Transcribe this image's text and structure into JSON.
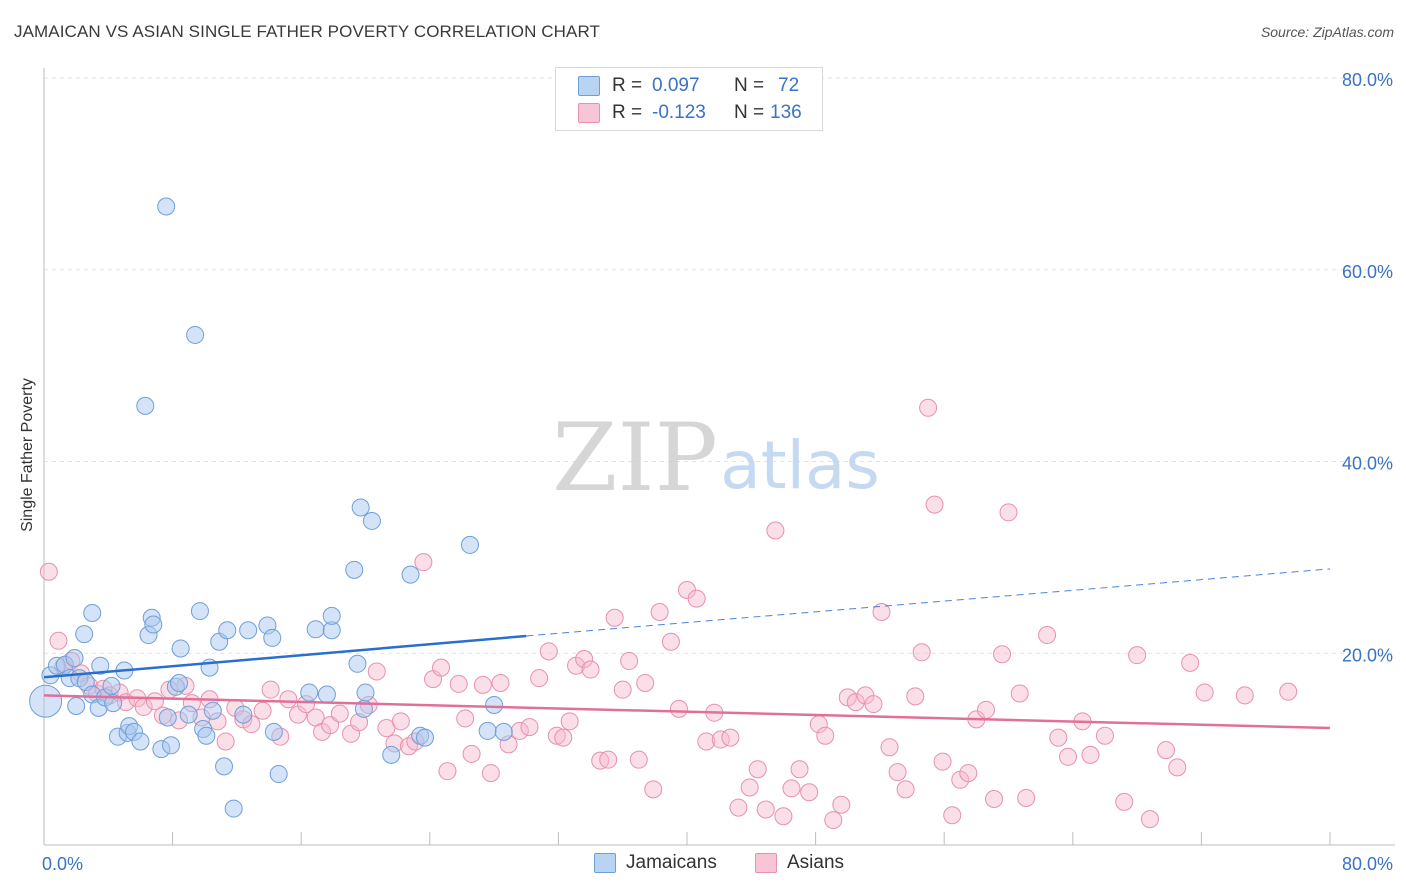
{
  "header": {
    "title": "JAMAICAN VS ASIAN SINGLE FATHER POVERTY CORRELATION CHART",
    "source": "Source: ZipAtlas.com"
  },
  "watermark": {
    "zip": "ZIP",
    "atlas": "atlas"
  },
  "colors": {
    "blue_fill": "#a9c8f0",
    "blue_stroke": "#6f9fd8",
    "blue_line": "#2a6fcf",
    "pink_fill": "#f6b8cb",
    "pink_stroke": "#e890ad",
    "pink_line": "#e0709a",
    "axis_text": "#3a72c4"
  },
  "legend_top": [
    {
      "r_label": "R =",
      "r_value": "0.097",
      "n_label": "N =",
      "n_value": "72"
    },
    {
      "r_label": "R =",
      "r_value": "-0.123",
      "n_label": "N =",
      "n_value": "136"
    }
  ],
  "legend_bottom": [
    "Jamaicans",
    "Asians"
  ],
  "chart_data": {
    "type": "scatter",
    "title": "JAMAICAN VS ASIAN SINGLE FATHER POVERTY CORRELATION CHART",
    "xlabel": "",
    "ylabel": "Single Father Poverty",
    "xlim": [
      0,
      80
    ],
    "ylim": [
      0,
      80
    ],
    "x_tick_labels": [
      "0.0%",
      "80.0%"
    ],
    "y_tick_values": [
      20,
      40,
      60,
      80
    ],
    "y_tick_labels": [
      "20.0%",
      "40.0%",
      "60.0%",
      "80.0%"
    ],
    "grid": true,
    "legend_position": "top-center",
    "series": [
      {
        "name": "Jamaicans",
        "r": 0.097,
        "n": 72,
        "trend": {
          "x0": 0,
          "y0": 17.5,
          "x1": 30,
          "y1": 21.8,
          "dashed_to_x": 80,
          "dashed_to_y": 28.8
        },
        "points": [
          [
            0.1,
            15
          ],
          [
            0.4,
            17.7
          ],
          [
            0.8,
            18.7
          ],
          [
            1.3,
            18.8
          ],
          [
            1.6,
            17.4
          ],
          [
            1.9,
            19.5
          ],
          [
            2.0,
            14.5
          ],
          [
            2.2,
            17.4
          ],
          [
            2.5,
            22
          ],
          [
            2.6,
            17
          ],
          [
            3.0,
            15.7
          ],
          [
            3.0,
            24.2
          ],
          [
            3.4,
            14.3
          ],
          [
            3.5,
            18.7
          ],
          [
            3.8,
            15.4
          ],
          [
            4.2,
            16.6
          ],
          [
            4.3,
            14.8
          ],
          [
            4.6,
            11.3
          ],
          [
            5.0,
            18.2
          ],
          [
            5.2,
            11.7
          ],
          [
            5.3,
            12.4
          ],
          [
            5.6,
            11.8
          ],
          [
            6.0,
            10.8
          ],
          [
            6.3,
            45.8
          ],
          [
            6.5,
            21.9
          ],
          [
            6.7,
            23.7
          ],
          [
            6.8,
            23.0
          ],
          [
            7.3,
            10.0
          ],
          [
            7.6,
            66.6
          ],
          [
            7.7,
            13.3
          ],
          [
            7.9,
            10.4
          ],
          [
            8.2,
            16.5
          ],
          [
            8.4,
            16.9
          ],
          [
            8.5,
            20.5
          ],
          [
            9.0,
            13.6
          ],
          [
            9.4,
            53.2
          ],
          [
            9.7,
            24.4
          ],
          [
            9.9,
            12.1
          ],
          [
            10.1,
            11.4
          ],
          [
            10.3,
            18.5
          ],
          [
            10.5,
            14.0
          ],
          [
            10.9,
            21.2
          ],
          [
            11.2,
            8.2
          ],
          [
            11.4,
            22.4
          ],
          [
            11.8,
            3.8
          ],
          [
            12.4,
            13.6
          ],
          [
            12.7,
            22.4
          ],
          [
            13.9,
            22.9
          ],
          [
            14.2,
            21.6
          ],
          [
            14.3,
            11.8
          ],
          [
            14.6,
            7.4
          ],
          [
            16.5,
            15.9
          ],
          [
            16.9,
            22.5
          ],
          [
            17.6,
            15.7
          ],
          [
            17.9,
            22.4
          ],
          [
            17.9,
            23.9
          ],
          [
            19.3,
            28.7
          ],
          [
            19.5,
            18.9
          ],
          [
            19.7,
            35.2
          ],
          [
            19.9,
            14.2
          ],
          [
            20.0,
            15.9
          ],
          [
            20.4,
            33.8
          ],
          [
            21.6,
            9.4
          ],
          [
            22.8,
            28.2
          ],
          [
            23.4,
            11.4
          ],
          [
            23.7,
            11.2
          ],
          [
            26.5,
            31.3
          ],
          [
            27.6,
            11.9
          ],
          [
            28.0,
            14.6
          ],
          [
            28.6,
            11.8
          ]
        ]
      },
      {
        "name": "Asians",
        "r": -0.123,
        "n": 136,
        "trend": {
          "x0": 0,
          "y0": 15.6,
          "x1": 80,
          "y1": 12.2
        },
        "points": [
          [
            0.3,
            28.5
          ],
          [
            0.9,
            21.3
          ],
          [
            1.2,
            18.6
          ],
          [
            1.7,
            19.2
          ],
          [
            2.3,
            17.9
          ],
          [
            2.8,
            16.6
          ],
          [
            3.3,
            15.8
          ],
          [
            3.7,
            16.3
          ],
          [
            4.1,
            15.6
          ],
          [
            4.7,
            15.9
          ],
          [
            5.1,
            14.9
          ],
          [
            5.8,
            15.3
          ],
          [
            6.2,
            14.4
          ],
          [
            6.9,
            15.0
          ],
          [
            7.4,
            13.5
          ],
          [
            7.8,
            16.2
          ],
          [
            8.4,
            13.0
          ],
          [
            8.8,
            16.6
          ],
          [
            9.2,
            14.8
          ],
          [
            9.8,
            13.3
          ],
          [
            10.3,
            15.2
          ],
          [
            10.8,
            12.9
          ],
          [
            11.3,
            10.8
          ],
          [
            11.9,
            14.3
          ],
          [
            12.4,
            13.1
          ],
          [
            12.9,
            12.6
          ],
          [
            13.6,
            14.0
          ],
          [
            14.1,
            16.2
          ],
          [
            14.7,
            11.3
          ],
          [
            15.2,
            15.2
          ],
          [
            15.8,
            13.6
          ],
          [
            16.3,
            14.7
          ],
          [
            16.9,
            13.3
          ],
          [
            17.3,
            11.8
          ],
          [
            17.8,
            12.5
          ],
          [
            18.4,
            13.7
          ],
          [
            19.1,
            11.6
          ],
          [
            19.6,
            12.8
          ],
          [
            20.2,
            14.6
          ],
          [
            20.7,
            18.1
          ],
          [
            21.3,
            12.2
          ],
          [
            21.8,
            10.6
          ],
          [
            22.2,
            12.9
          ],
          [
            22.7,
            10.3
          ],
          [
            23.1,
            10.8
          ],
          [
            23.6,
            29.5
          ],
          [
            24.2,
            17.3
          ],
          [
            24.7,
            18.5
          ],
          [
            25.1,
            7.7
          ],
          [
            25.8,
            16.8
          ],
          [
            26.2,
            13.2
          ],
          [
            26.6,
            9.5
          ],
          [
            27.3,
            16.7
          ],
          [
            27.8,
            7.5
          ],
          [
            28.4,
            16.9
          ],
          [
            28.9,
            10.5
          ],
          [
            29.6,
            11.9
          ],
          [
            30.2,
            12.3
          ],
          [
            30.8,
            17.4
          ],
          [
            31.4,
            20.2
          ],
          [
            31.9,
            11.4
          ],
          [
            32.3,
            11.2
          ],
          [
            32.7,
            12.9
          ],
          [
            33.1,
            18.7
          ],
          [
            33.6,
            19.4
          ],
          [
            34.0,
            18.3
          ],
          [
            34.6,
            8.8
          ],
          [
            35.1,
            8.9
          ],
          [
            35.5,
            23.7
          ],
          [
            36.0,
            16.2
          ],
          [
            36.4,
            19.2
          ],
          [
            37.0,
            8.9
          ],
          [
            37.4,
            16.9
          ],
          [
            37.9,
            5.8
          ],
          [
            38.3,
            24.3
          ],
          [
            39.0,
            21.2
          ],
          [
            39.5,
            14.2
          ],
          [
            40.0,
            26.6
          ],
          [
            40.6,
            25.7
          ],
          [
            41.2,
            10.8
          ],
          [
            41.7,
            13.8
          ],
          [
            42.1,
            11.0
          ],
          [
            42.7,
            11.2
          ],
          [
            43.2,
            3.9
          ],
          [
            43.9,
            6.0
          ],
          [
            44.4,
            7.9
          ],
          [
            44.9,
            3.7
          ],
          [
            45.5,
            32.8
          ],
          [
            46.0,
            3.0
          ],
          [
            46.5,
            5.9
          ],
          [
            47.0,
            7.9
          ],
          [
            47.6,
            5.5
          ],
          [
            48.2,
            12.6
          ],
          [
            48.6,
            11.4
          ],
          [
            49.1,
            2.6
          ],
          [
            49.6,
            4.2
          ],
          [
            50.0,
            15.4
          ],
          [
            50.5,
            14.9
          ],
          [
            51.1,
            15.6
          ],
          [
            51.6,
            14.7
          ],
          [
            52.1,
            24.3
          ],
          [
            52.6,
            10.2
          ],
          [
            53.1,
            7.6
          ],
          [
            53.6,
            5.8
          ],
          [
            54.2,
            15.5
          ],
          [
            54.6,
            20.1
          ],
          [
            55.0,
            45.6
          ],
          [
            55.4,
            35.5
          ],
          [
            55.9,
            8.7
          ],
          [
            56.5,
            3.1
          ],
          [
            57.0,
            6.8
          ],
          [
            57.5,
            7.5
          ],
          [
            58.0,
            13.1
          ],
          [
            58.6,
            14.1
          ],
          [
            59.1,
            4.8
          ],
          [
            59.6,
            19.9
          ],
          [
            60.0,
            34.7
          ],
          [
            60.7,
            15.8
          ],
          [
            61.1,
            4.9
          ],
          [
            62.4,
            21.9
          ],
          [
            63.1,
            11.2
          ],
          [
            63.7,
            9.2
          ],
          [
            64.6,
            12.9
          ],
          [
            65.1,
            9.4
          ],
          [
            66.0,
            11.4
          ],
          [
            67.2,
            4.5
          ],
          [
            68.0,
            19.8
          ],
          [
            68.8,
            2.7
          ],
          [
            69.8,
            9.9
          ],
          [
            70.5,
            8.1
          ],
          [
            71.3,
            19.0
          ],
          [
            72.2,
            15.9
          ],
          [
            74.7,
            15.6
          ],
          [
            77.4,
            16.0
          ]
        ]
      }
    ]
  }
}
